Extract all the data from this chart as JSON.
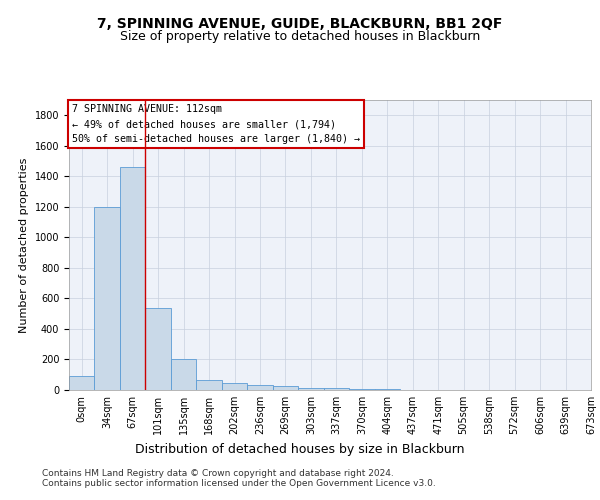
{
  "title": "7, SPINNING AVENUE, GUIDE, BLACKBURN, BB1 2QF",
  "subtitle": "Size of property relative to detached houses in Blackburn",
  "xlabel": "Distribution of detached houses by size in Blackburn",
  "ylabel": "Number of detached properties",
  "bar_values": [
    90,
    1200,
    1460,
    540,
    205,
    65,
    45,
    35,
    28,
    15,
    10,
    8,
    5,
    3,
    2,
    1,
    1,
    0,
    0,
    0
  ],
  "bar_labels": [
    "0sqm",
    "34sqm",
    "67sqm",
    "101sqm",
    "135sqm",
    "168sqm",
    "202sqm",
    "236sqm",
    "269sqm",
    "303sqm",
    "337sqm",
    "370sqm",
    "404sqm",
    "437sqm",
    "471sqm",
    "505sqm",
    "538sqm",
    "572sqm",
    "606sqm",
    "639sqm",
    "673sqm"
  ],
  "bar_color": "#c9d9e8",
  "bar_edge_color": "#5b9bd5",
  "vline_x": 3,
  "vline_color": "#cc0000",
  "annotation_line1": "7 SPINNING AVENUE: 112sqm",
  "annotation_line2": "← 49% of detached houses are smaller (1,794)",
  "annotation_line3": "50% of semi-detached houses are larger (1,840) →",
  "annotation_box_color": "#cc0000",
  "ylim": [
    0,
    1900
  ],
  "yticks": [
    0,
    200,
    400,
    600,
    800,
    1000,
    1200,
    1400,
    1600,
    1800
  ],
  "footnote1": "Contains HM Land Registry data © Crown copyright and database right 2024.",
  "footnote2": "Contains public sector information licensed under the Open Government Licence v3.0.",
  "bg_color": "#eef2f9",
  "title_fontsize": 10,
  "subtitle_fontsize": 9,
  "tick_fontsize": 7,
  "ylabel_fontsize": 8,
  "xlabel_fontsize": 9,
  "footnote_fontsize": 6.5
}
